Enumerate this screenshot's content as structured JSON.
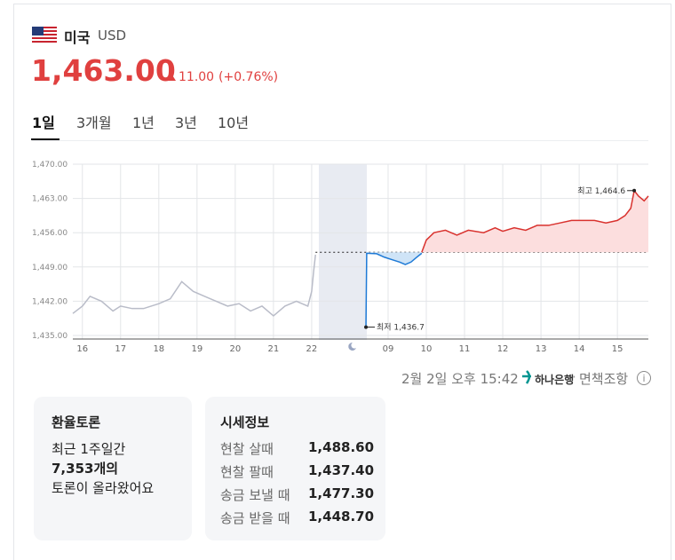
{
  "header": {
    "country": "미국",
    "currency": "USD",
    "price": "1,463.00",
    "change": "11.00",
    "change_pct": "(+0.76%)"
  },
  "tabs": [
    "1일",
    "3개월",
    "1년",
    "3년",
    "10년"
  ],
  "chart_data": {
    "type": "line",
    "xlim": [
      -0.25,
      14.81
    ],
    "ylim": [
      1435,
      1470
    ],
    "yticks": [
      {
        "value": 1435,
        "label": "1,435.00"
      },
      {
        "value": 1442,
        "label": "1,442.00"
      },
      {
        "value": 1449,
        "label": "1,449.00"
      },
      {
        "value": 1456,
        "label": "1,456.00"
      },
      {
        "value": 1463,
        "label": "1,463.00"
      },
      {
        "value": 1470,
        "label": "1,470.00"
      }
    ],
    "xticks": [
      {
        "value": 0,
        "label": "16"
      },
      {
        "value": 1,
        "label": "17"
      },
      {
        "value": 2,
        "label": "18"
      },
      {
        "value": 3,
        "label": "19"
      },
      {
        "value": 4,
        "label": "20"
      },
      {
        "value": 5,
        "label": "21"
      },
      {
        "value": 6,
        "label": "22"
      },
      {
        "value": 8,
        "label": "09"
      },
      {
        "value": 9,
        "label": "10"
      },
      {
        "value": 10,
        "label": "11"
      },
      {
        "value": 11,
        "label": "12"
      },
      {
        "value": 12,
        "label": "13"
      },
      {
        "value": 13,
        "label": "14"
      },
      {
        "value": 14,
        "label": "15"
      }
    ],
    "grid": true,
    "reference": 1452,
    "series": [
      {
        "color": "#b9bcc8",
        "fill": null,
        "x": [
          -0.25,
          0,
          0.2,
          0.5,
          0.8,
          1.0,
          1.3,
          1.6,
          2.0,
          2.3,
          2.6,
          2.9,
          3.2,
          3.5,
          3.8,
          4.1,
          4.4,
          4.7,
          5.0,
          5.3,
          5.6,
          5.9,
          6.0,
          6.05,
          6.1
        ],
        "values": [
          1439.5,
          1441,
          1443,
          1442,
          1440,
          1441,
          1440.5,
          1440.5,
          1441.5,
          1442.5,
          1446,
          1444,
          1443,
          1442,
          1441,
          1441.5,
          1440,
          1441,
          1439,
          1441,
          1442,
          1441,
          1444,
          1448,
          1451.5
        ]
      },
      {
        "color": "#1e7ad6",
        "fill": "#cfe4f7",
        "x": [
          7.42,
          7.44,
          7.7,
          7.9,
          8.1,
          8.3,
          8.45,
          8.6,
          8.75,
          8.88
        ],
        "values": [
          1436.7,
          1451.8,
          1451.7,
          1451,
          1450.5,
          1450,
          1449.5,
          1450,
          1451,
          1451.8
        ]
      },
      {
        "color": "#d9322e",
        "fill": "#fcdede",
        "x": [
          8.88,
          9.0,
          9.2,
          9.5,
          9.8,
          10.1,
          10.5,
          10.8,
          11.0,
          11.3,
          11.6,
          11.9,
          12.2,
          12.5,
          12.8,
          13.1,
          13.4,
          13.7,
          14.0,
          14.2,
          14.35,
          14.44,
          14.55,
          14.7,
          14.81
        ],
        "values": [
          1452,
          1454.5,
          1456,
          1456.5,
          1455.5,
          1456.5,
          1456,
          1457,
          1456.3,
          1457,
          1456.5,
          1457.5,
          1457.5,
          1458,
          1458.5,
          1458.5,
          1458.5,
          1458,
          1458.5,
          1459.5,
          1461,
          1464.6,
          1463.5,
          1462.5,
          1463.5
        ]
      }
    ],
    "annotations": [
      {
        "text": "최고 1,464.6",
        "x": 14.44,
        "y": 1464.6,
        "side": "left"
      },
      {
        "text": "최저 1,436.7",
        "x": 7.42,
        "y": 1436.7,
        "side": "right"
      }
    ]
  },
  "footer": {
    "time": "2월 2일 오후 15:42",
    "bank": "하나은행",
    "disclaimer": "면책조항"
  },
  "discussion": {
    "title": "환율토론",
    "lines": [
      "최근 1주일간",
      "7,353개의",
      "토론이 올라왔어요"
    ]
  },
  "market": {
    "title": "시세정보",
    "rows": [
      [
        "현찰 살때",
        "1,488.60"
      ],
      [
        "현찰 팔때",
        "1,437.40"
      ],
      [
        "송금 보낼 때",
        "1,477.30"
      ],
      [
        "송금 받을 때",
        "1,448.70"
      ]
    ]
  }
}
